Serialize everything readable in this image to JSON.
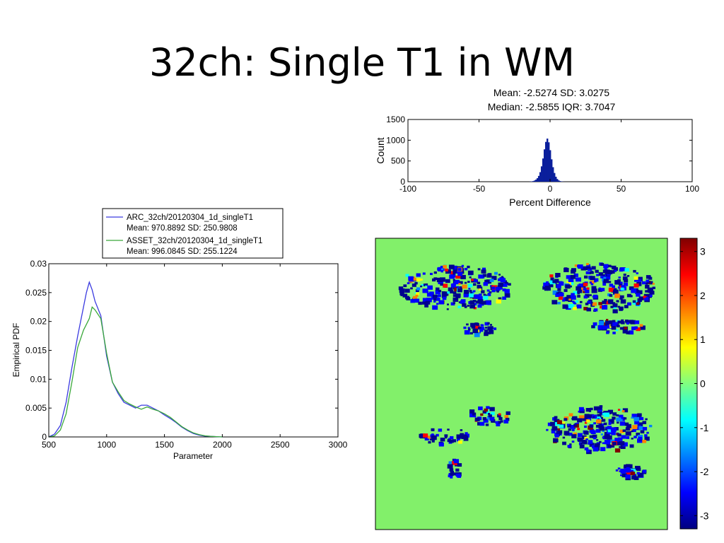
{
  "slide": {
    "title": "32ch: Single T1 in WM"
  },
  "chart_data": [
    {
      "type": "bar",
      "title": "Mean: -2.5274 SD: 3.0275",
      "subtitle": "Median: -2.5855 IQR: 3.7047",
      "xlabel": "Percent Difference",
      "ylabel": "Count",
      "xlim": [
        -100,
        100
      ],
      "ylim": [
        0,
        1500
      ],
      "xticks": [
        -100,
        -50,
        0,
        50,
        100
      ],
      "yticks": [
        0,
        500,
        1000,
        1500
      ],
      "bar_color": "#0a1f9c",
      "x": [
        -14,
        -13,
        -12,
        -11,
        -10,
        -9,
        -8,
        -7,
        -6,
        -5,
        -4,
        -3,
        -2,
        -1,
        0,
        1,
        2,
        3,
        4,
        5,
        6,
        7,
        8,
        9,
        10
      ],
      "values": [
        4,
        8,
        15,
        28,
        50,
        85,
        140,
        230,
        370,
        560,
        780,
        960,
        1040,
        950,
        760,
        540,
        350,
        210,
        120,
        65,
        32,
        15,
        7,
        3,
        1
      ]
    },
    {
      "type": "line",
      "xlabel": "Parameter",
      "ylabel": "Empirical PDF",
      "xlim": [
        500,
        3000
      ],
      "ylim": [
        0,
        0.03
      ],
      "xticks": [
        500,
        1000,
        1500,
        2000,
        2500,
        3000
      ],
      "yticks": [
        "0",
        "0.005",
        "0.01",
        "0.015",
        "0.02",
        "0.025",
        "0.03"
      ],
      "legend_position": "top",
      "series": [
        {
          "name": "ARC_32ch/20120304_1d_singleT1",
          "stats": "Mean: 970.8892 SD: 250.9808",
          "color": "#3a3ae0",
          "x": [
            500,
            550,
            600,
            650,
            700,
            750,
            800,
            825,
            850,
            875,
            900,
            950,
            1000,
            1050,
            1100,
            1150,
            1200,
            1250,
            1300,
            1350,
            1400,
            1450,
            1500,
            1550,
            1600,
            1650,
            1700,
            1750,
            1800,
            1850,
            1900,
            1950,
            2000
          ],
          "values": [
            0.0,
            0.0005,
            0.002,
            0.006,
            0.012,
            0.0175,
            0.0225,
            0.025,
            0.0268,
            0.0255,
            0.0235,
            0.021,
            0.014,
            0.0095,
            0.0075,
            0.006,
            0.0055,
            0.005,
            0.0055,
            0.0055,
            0.005,
            0.0045,
            0.0038,
            0.0032,
            0.0025,
            0.0017,
            0.0011,
            0.0006,
            0.0003,
            0.00015,
            0.0001,
            5e-05,
            0.0
          ]
        },
        {
          "name": "ASSET_32ch/20120304_1d_singleT1",
          "stats": "Mean: 996.0845 SD: 255.1224",
          "color": "#3aa83a",
          "x": [
            500,
            550,
            600,
            650,
            700,
            750,
            800,
            825,
            850,
            875,
            900,
            950,
            1000,
            1050,
            1100,
            1150,
            1200,
            1250,
            1300,
            1350,
            1400,
            1450,
            1500,
            1550,
            1600,
            1650,
            1700,
            1750,
            1800,
            1850,
            1900,
            1950,
            2000
          ],
          "values": [
            0.0,
            0.0002,
            0.0012,
            0.004,
            0.0095,
            0.0155,
            0.0185,
            0.0195,
            0.0205,
            0.0225,
            0.022,
            0.0205,
            0.0145,
            0.0095,
            0.0078,
            0.0063,
            0.0057,
            0.0052,
            0.0048,
            0.0052,
            0.0048,
            0.0045,
            0.004,
            0.0034,
            0.0026,
            0.0018,
            0.0012,
            0.0007,
            0.0004,
            0.0002,
            0.0001,
            5e-05,
            0.0
          ]
        }
      ]
    },
    {
      "type": "heatmap",
      "background_color": "#82f06a",
      "colorbar": {
        "ticks": [
          "3",
          "2",
          "1",
          "0",
          "-1",
          "-2",
          "-3"
        ],
        "range": [
          -3.3,
          3.3
        ],
        "colors": [
          "#800000",
          "#ff0000",
          "#ff8000",
          "#ffff00",
          "#80ff80",
          "#00ffff",
          "#0080ff",
          "#0000ff",
          "#000080"
        ]
      }
    }
  ]
}
